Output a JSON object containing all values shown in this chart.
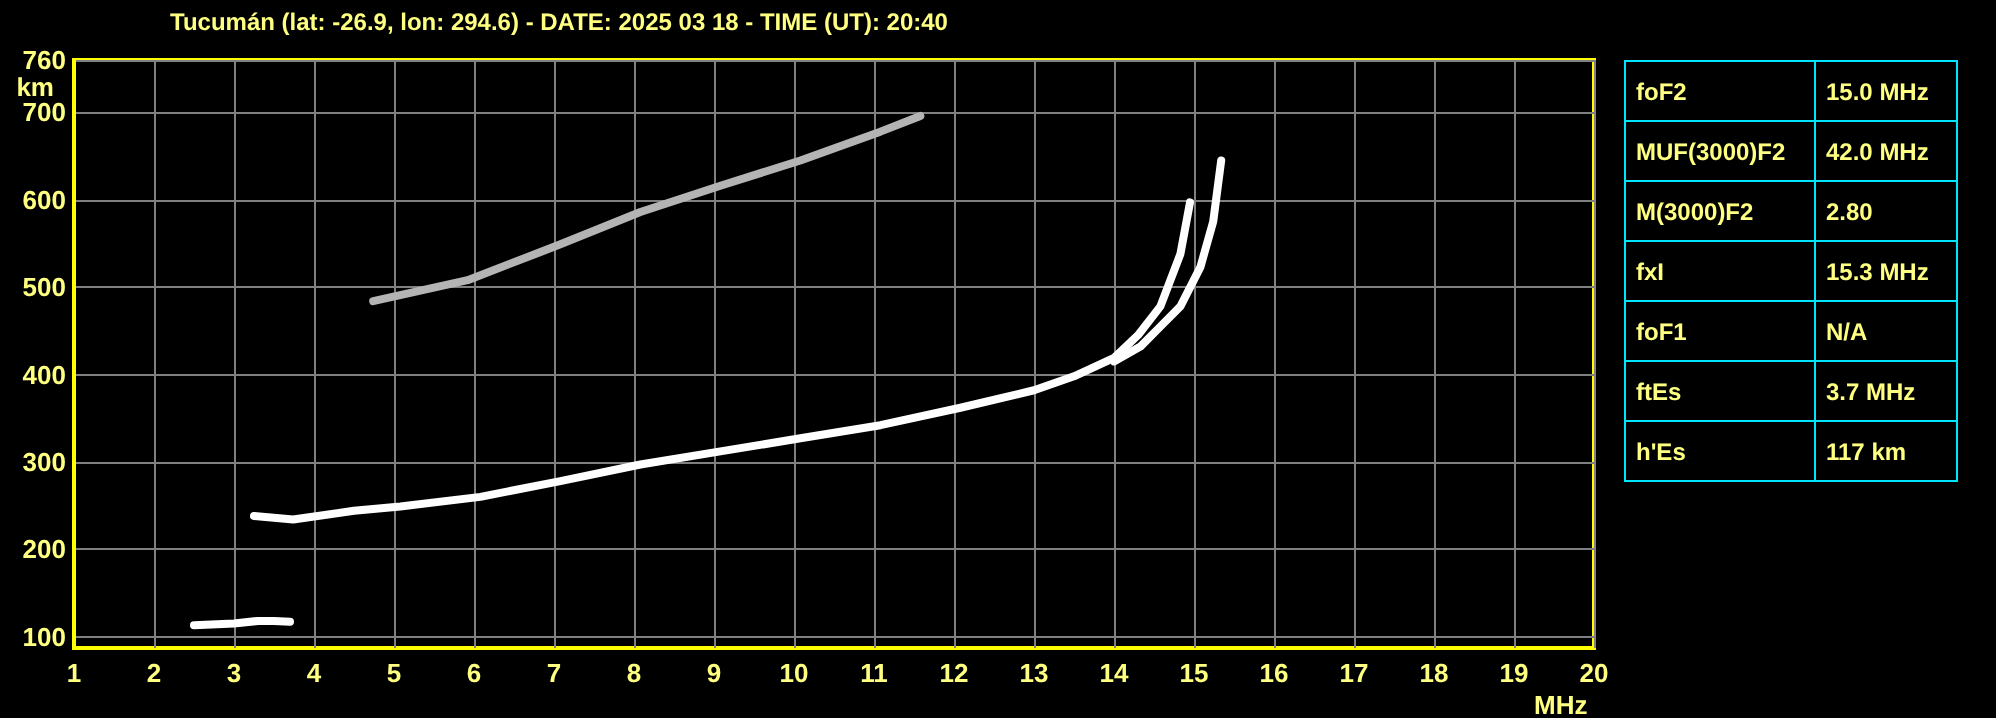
{
  "chart_data": {
    "type": "line",
    "title": "Tucumán (lat: -26.9, lon: 294.6) - DATE: 2025 03 18 - TIME (UT): 20:40",
    "xlabel": "MHz",
    "ylabel": "km",
    "xlim": [
      1,
      20
    ],
    "xticks": [
      1,
      2,
      3,
      4,
      5,
      6,
      7,
      8,
      9,
      10,
      11,
      12,
      13,
      14,
      15,
      16,
      17,
      18,
      19,
      20
    ],
    "ylim": [
      87,
      760
    ],
    "yticks": [
      100,
      200,
      300,
      400,
      500,
      600,
      700,
      760
    ],
    "grid": true,
    "marker": "none",
    "line_style": "solid",
    "series": [
      {
        "color": "#ffffff",
        "x": [
          2.5,
          3.0,
          3.3,
          3.5,
          3.7
        ],
        "values": [
          113,
          115,
          118,
          118,
          117
        ]
      },
      {
        "color": "#ffffff",
        "x": [
          3.25,
          3.74,
          4.5,
          5.08,
          6.08,
          7.08,
          8.08,
          9.08,
          10.08,
          11.08,
          12.08,
          13.0,
          13.5,
          14.0,
          14.3,
          14.58,
          14.83,
          14.95
        ],
        "values": [
          238,
          234,
          244,
          249,
          260,
          278,
          297,
          312,
          327,
          342,
          362,
          382,
          398,
          419,
          445,
          478,
          538,
          597
        ]
      },
      {
        "color": "#ffffff",
        "x": [
          14.0,
          14.33,
          14.58,
          14.83,
          15.08,
          15.24,
          15.34
        ],
        "values": [
          415,
          432,
          455,
          478,
          523,
          575,
          645
        ]
      },
      {
        "color": "#b4b4b4",
        "x": [
          4.74,
          5.92,
          7.08,
          8.08,
          9.08,
          10.08,
          11.08,
          11.58
        ],
        "values": [
          484,
          508,
          549,
          586,
          616,
          645,
          678,
          696
        ]
      }
    ],
    "annotations": [
      "foF2",
      "15.0 MHz",
      "MUF(3000)F2",
      "42.0 MHz",
      "M(3000)F2",
      "2.80",
      "fxI",
      "15.3 MHz",
      "foF1",
      "N/A",
      "ftEs",
      "3.7 MHz",
      "h'Es",
      "117 km"
    ]
  }
}
